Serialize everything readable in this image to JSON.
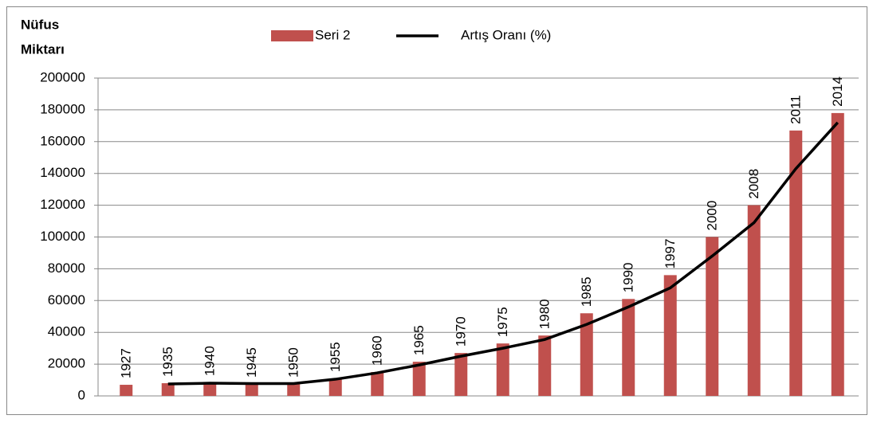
{
  "chart_data": {
    "type": "bar",
    "y_label_lines": [
      "Nüfus",
      "Miktarı"
    ],
    "categories": [
      "1927",
      "1935",
      "1940",
      "1945",
      "1950",
      "1955",
      "1960",
      "1965",
      "1970",
      "1975",
      "1980",
      "1985",
      "1990",
      "1997",
      "2000",
      "2008",
      "2011",
      "2014"
    ],
    "series": [
      {
        "name": "Seri 2",
        "type": "bar",
        "color": "#c0504d",
        "values": [
          7000,
          8000,
          8500,
          7500,
          7500,
          11000,
          15000,
          21500,
          27000,
          33000,
          38000,
          52000,
          61000,
          76000,
          100000,
          120000,
          167000,
          178000
        ]
      },
      {
        "name": "Artış Oranı (%)",
        "type": "line",
        "color": "#000000",
        "values": [
          null,
          7500,
          8000,
          7800,
          7800,
          10500,
          14500,
          19500,
          25000,
          30000,
          35500,
          45000,
          56000,
          68000,
          88000,
          109000,
          143000,
          172000
        ]
      }
    ],
    "ylim": [
      0,
      200000
    ],
    "yticks": [
      0,
      20000,
      40000,
      60000,
      80000,
      100000,
      120000,
      140000,
      160000,
      180000,
      200000
    ],
    "grid": true
  }
}
